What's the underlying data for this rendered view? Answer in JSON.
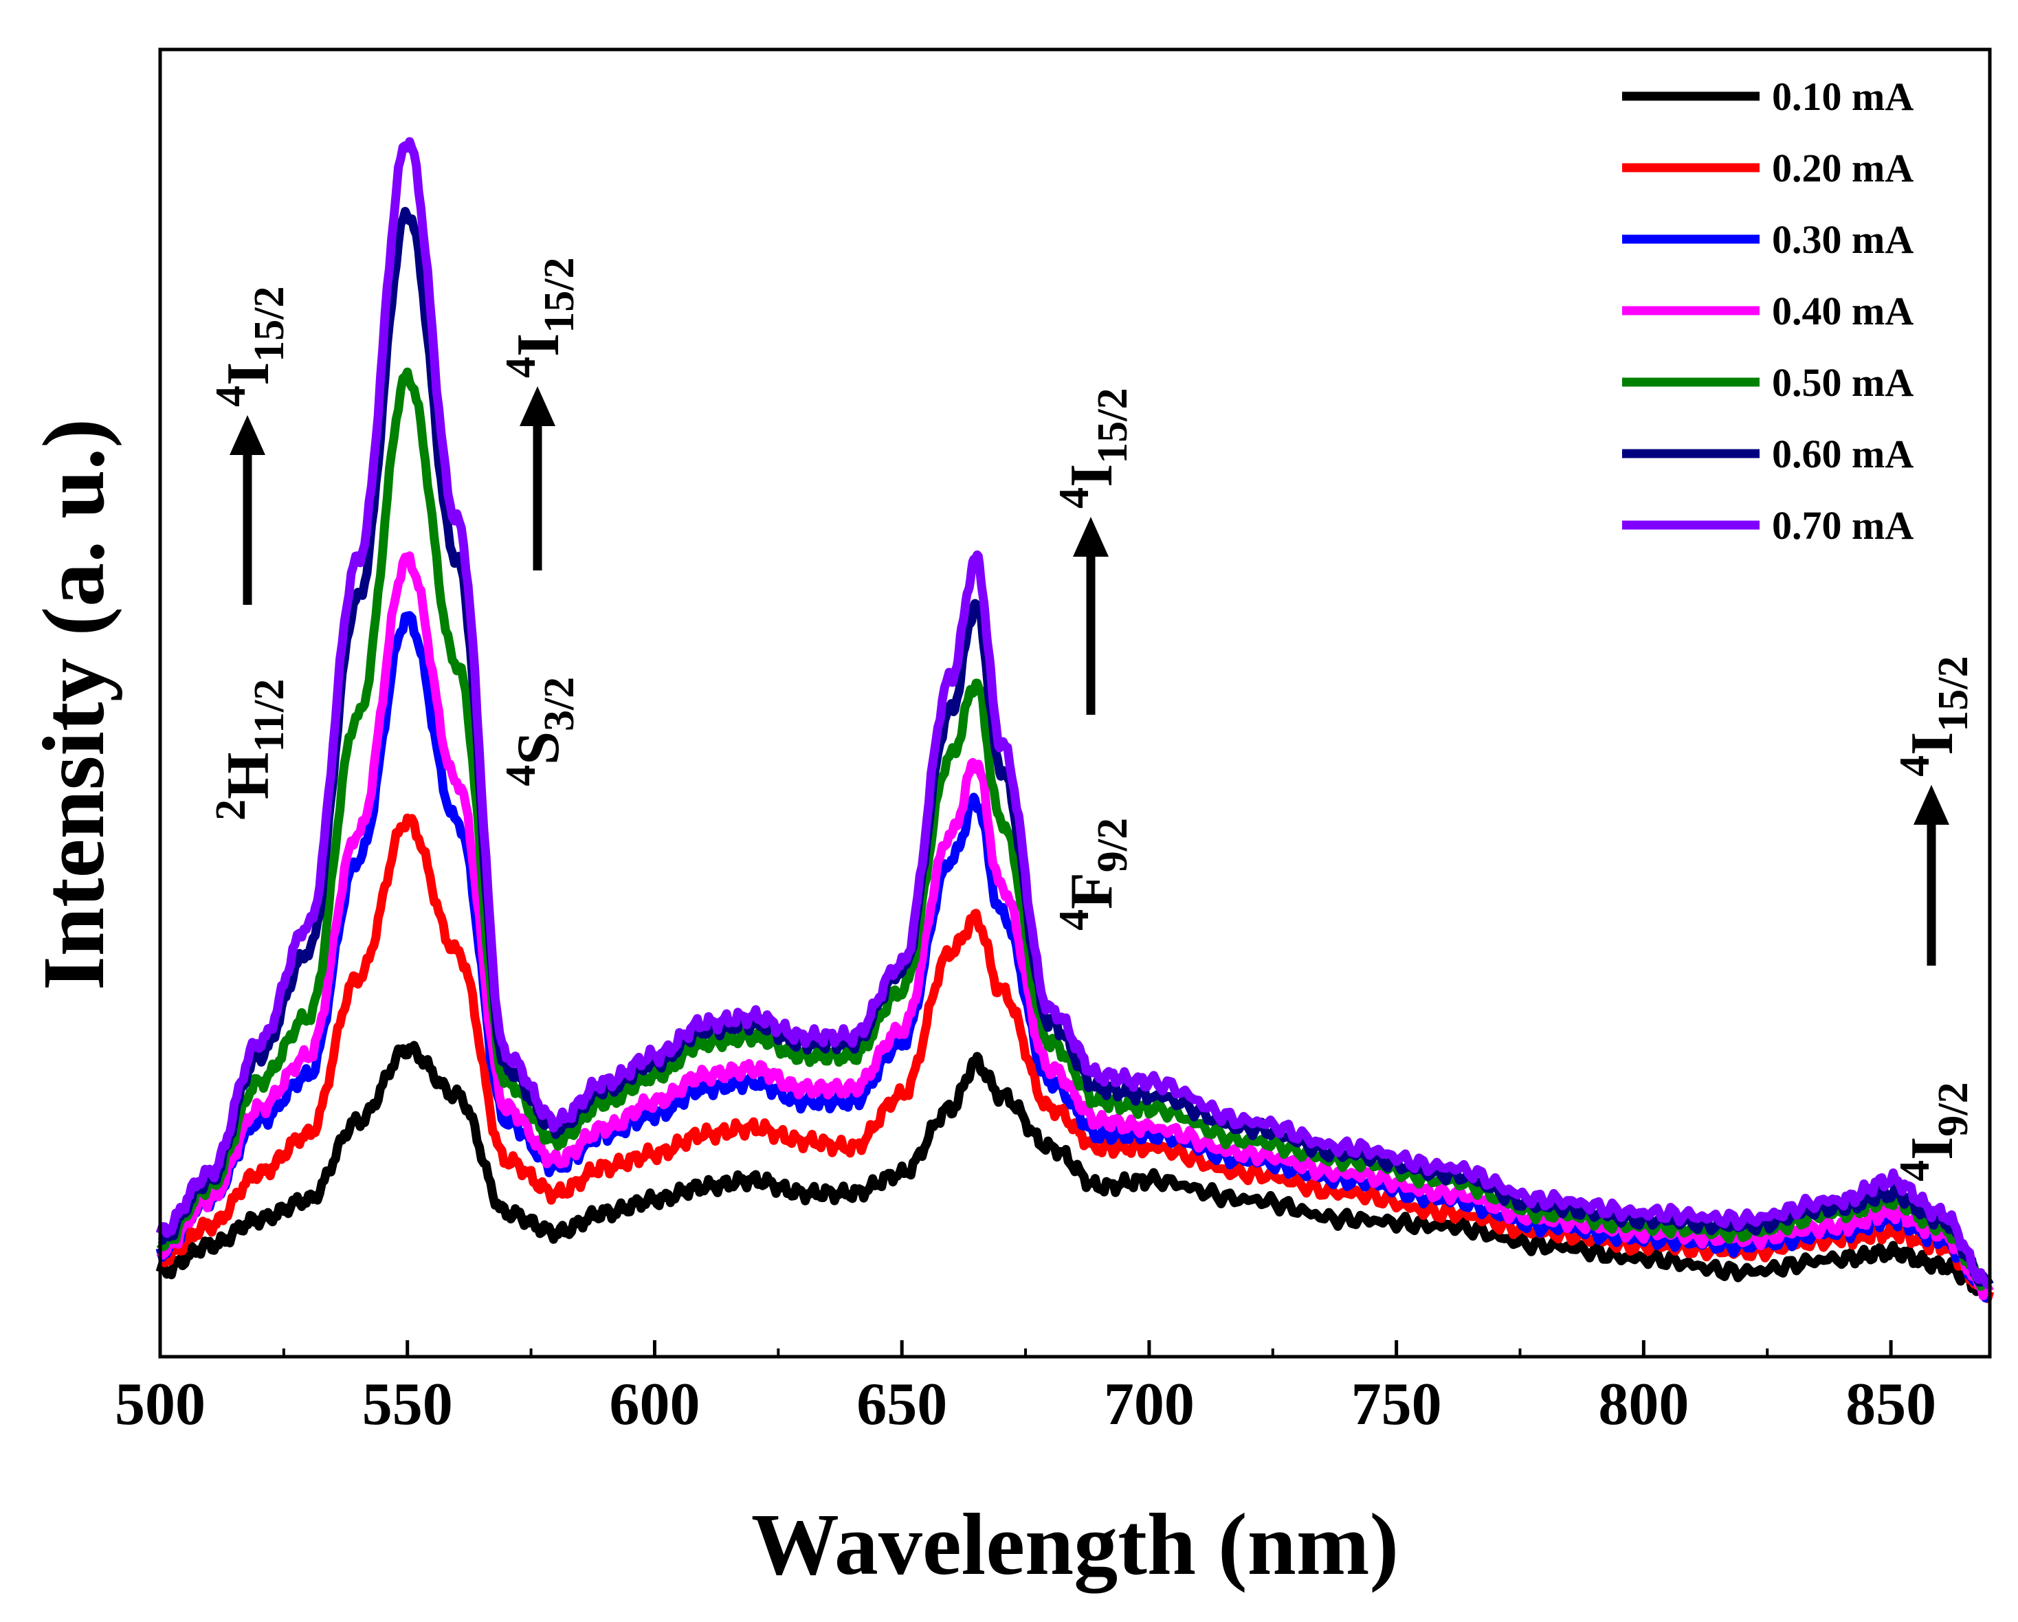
{
  "chart_data": {
    "type": "line",
    "title": "",
    "xlabel": "Wavelength (nm)",
    "ylabel": "Intensity (a. u.)",
    "xlim": [
      500,
      870
    ],
    "ylim": [
      0,
      100
    ],
    "xticks": [
      "500",
      "550",
      "600",
      "650",
      "700",
      "750",
      "800",
      "850"
    ],
    "show_yticks": false,
    "grid": false,
    "legend_position": "top-right",
    "x": [
      500,
      510,
      520,
      530,
      540,
      550,
      560,
      570,
      580,
      590,
      600,
      610,
      620,
      630,
      640,
      650,
      660,
      665,
      670,
      680,
      690,
      700,
      720,
      740,
      760,
      780,
      800,
      820,
      840,
      850,
      860,
      870
    ],
    "series": [
      {
        "name": "0.10 mA",
        "color": "#000000",
        "values": [
          6.5,
          8.5,
          10.5,
          12,
          18,
          23.5,
          20,
          11,
          9.5,
          11,
          12,
          13,
          13.5,
          12.5,
          12.5,
          14,
          19,
          22.5,
          20,
          16,
          13,
          13.5,
          12,
          10.5,
          10,
          8.5,
          7.5,
          6.5,
          7.5,
          8,
          7,
          5
        ]
      },
      {
        "name": "0.20 mA",
        "color": "#ff0000",
        "values": [
          7.5,
          10,
          14,
          17,
          29,
          41,
          31,
          15,
          12.5,
          14.5,
          15.5,
          17,
          17.5,
          16.5,
          16,
          20,
          31,
          33.5,
          28,
          19,
          16,
          16,
          14,
          12.5,
          11,
          9.5,
          8.5,
          8,
          9,
          9.5,
          8.5,
          5
        ]
      },
      {
        "name": "0.30 mA",
        "color": "#0000ff",
        "values": [
          8,
          12,
          18,
          21.5,
          38,
          56.5,
          41,
          18,
          14.5,
          17,
          18.5,
          20.5,
          21,
          19.5,
          19.5,
          24,
          38,
          42.5,
          34,
          21,
          17,
          17,
          15,
          13.5,
          12,
          10,
          9,
          8.5,
          9.5,
          10.5,
          9,
          5
        ]
      },
      {
        "name": "0.40 mA",
        "color": "#ff00ff",
        "values": [
          8,
          12,
          19,
          23,
          40,
          61,
          44,
          19,
          15,
          17.5,
          19.5,
          21.5,
          22,
          20.5,
          20.5,
          25,
          40,
          45.5,
          36,
          22,
          18,
          17.5,
          15.5,
          14,
          12.5,
          10.5,
          9.5,
          9,
          10,
          11,
          9.5,
          5
        ]
      },
      {
        "name": "0.50 mA",
        "color": "#008000",
        "values": [
          8.5,
          13,
          21,
          26,
          49,
          75,
          53,
          21,
          16.5,
          19.5,
          21.5,
          24,
          24.5,
          23,
          23,
          28,
          46,
          51.5,
          41,
          24,
          19.5,
          19,
          16.5,
          15,
          13.5,
          11,
          10,
          9.5,
          11,
          12,
          10,
          5.5
        ]
      },
      {
        "name": "0.60 mA",
        "color": "#000080",
        "values": [
          9,
          13.5,
          23,
          31,
          58,
          87.5,
          61,
          22,
          17.5,
          20.5,
          22.5,
          25,
          25.5,
          24,
          24,
          29.5,
          49.5,
          57.5,
          45,
          25.5,
          20.5,
          20,
          17.5,
          15.5,
          14,
          11.5,
          10.5,
          10,
          11.5,
          12.5,
          10.5,
          5.5
        ]
      },
      {
        "name": "0.70 mA",
        "color": "#8000ff",
        "values": [
          9.5,
          14,
          24,
          33,
          61,
          93,
          64,
          23,
          18,
          21,
          23,
          25.5,
          26,
          24.5,
          24.5,
          30,
          52,
          61,
          47,
          26.5,
          21.5,
          21,
          18,
          16,
          14.5,
          12,
          11,
          10.5,
          12,
          13.5,
          11,
          5.5
        ]
      }
    ],
    "annotations": [
      {
        "upper_base": "4",
        "upper_letter": "I",
        "upper_sub": "15/2",
        "lower_base": "2",
        "lower_letter": "H",
        "lower_sub": "11/2",
        "near_x": 520
      },
      {
        "upper_base": "4",
        "upper_letter": "I",
        "upper_sub": "15/2",
        "lower_base": "4",
        "lower_letter": "S",
        "lower_sub": "3/2",
        "near_x": 580
      },
      {
        "upper_base": "4",
        "upper_letter": "I",
        "upper_sub": "15/2",
        "lower_base": "4",
        "lower_letter": "F",
        "lower_sub": "9/2",
        "near_x": 690
      },
      {
        "upper_base": "4",
        "upper_letter": "I",
        "upper_sub": "15/2",
        "lower_base": "4",
        "lower_letter": "I",
        "lower_sub": "9/2",
        "near_x": 860
      }
    ]
  }
}
